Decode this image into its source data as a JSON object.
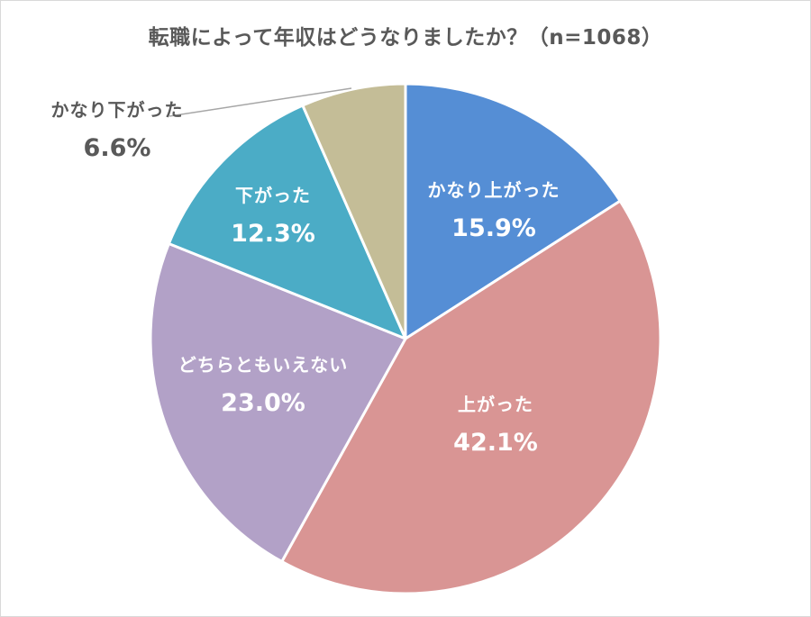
{
  "chart_data": {
    "type": "pie",
    "title": "転職によって年収はどうなりましたか？（n=1068）",
    "n": 1068,
    "start_angle_deg": 0,
    "direction": "clockwise",
    "slices": [
      {
        "label": "かなり上がった",
        "value": 15.9,
        "pct_label": "15.9%",
        "color": "#558ED5"
      },
      {
        "label": "上がった",
        "value": 42.1,
        "pct_label": "42.1%",
        "color": "#D99594"
      },
      {
        "label": "どちらともいえない",
        "value": 23.0,
        "pct_label": "23.0%",
        "color": "#B2A1C7"
      },
      {
        "label": "下がった",
        "value": 12.3,
        "pct_label": "12.3%",
        "color": "#4BACC6"
      },
      {
        "label": "かなり下がった",
        "value": 6.6,
        "pct_label": "6.6%",
        "color": "#C4BD97"
      }
    ],
    "legend": "none",
    "data_labels": "category name and percentage"
  }
}
